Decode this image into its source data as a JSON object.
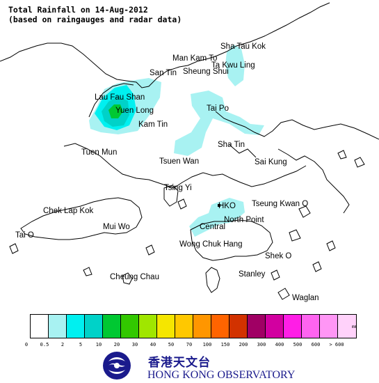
{
  "title": {
    "line1": "Total Rainfall on 14-Aug-2012",
    "line2": "(based on raingauges and radar data)"
  },
  "places": [
    {
      "key": "sha-tau-kok",
      "label": "Sha Tau Kok"
    },
    {
      "key": "man-kam-to",
      "label": "Man Kam To"
    },
    {
      "key": "ta-kwu-ling",
      "label": "Ta Kwu Ling"
    },
    {
      "key": "san-tin",
      "label": "San Tin"
    },
    {
      "key": "sheung-shui",
      "label": "Sheung Shui"
    },
    {
      "key": "lau-fau-shan",
      "label": "Lau Fau Shan"
    },
    {
      "key": "yuen-long",
      "label": "Yuen Long"
    },
    {
      "key": "tai-po",
      "label": "Tai Po"
    },
    {
      "key": "kam-tin",
      "label": "Kam Tin"
    },
    {
      "key": "tuen-mun",
      "label": "Tuen Mun"
    },
    {
      "key": "sha-tin",
      "label": "Sha Tin"
    },
    {
      "key": "tsuen-wan",
      "label": "Tsuen Wan"
    },
    {
      "key": "sai-kung",
      "label": "Sai Kung"
    },
    {
      "key": "tsing-yi",
      "label": "Tsing Yi"
    },
    {
      "key": "chek-lap-kok",
      "label": "Chek Lap Kok"
    },
    {
      "key": "hko",
      "label": "HKO"
    },
    {
      "key": "tseung-kwan-o",
      "label": "Tseung Kwan O"
    },
    {
      "key": "north-point",
      "label": "North Point"
    },
    {
      "key": "mui-wo",
      "label": "Mui Wo"
    },
    {
      "key": "central",
      "label": "Central"
    },
    {
      "key": "tai-o",
      "label": "Tai O"
    },
    {
      "key": "wong-chuk-hang",
      "label": "Wong Chuk Hang"
    },
    {
      "key": "shek-o",
      "label": "Shek O"
    },
    {
      "key": "cheung-chau",
      "label": "Cheung Chau"
    },
    {
      "key": "stanley",
      "label": "Stanley"
    },
    {
      "key": "waglan",
      "label": "Waglan"
    }
  ],
  "legend": {
    "unit": "mm",
    "ticks": [
      "0",
      "0.5",
      "2",
      "5",
      "10",
      "20",
      "30",
      "40",
      "50",
      "70",
      "100",
      "150",
      "200",
      "300",
      "400",
      "500",
      "600",
      "> 600"
    ],
    "colors": [
      "#ffffff",
      "#a8f2f2",
      "#00f0f0",
      "#00d2c8",
      "#00c832",
      "#32c800",
      "#a0e600",
      "#f5e600",
      "#ffc800",
      "#ff9600",
      "#ff6400",
      "#d23200",
      "#a00064",
      "#d200a0",
      "#ff1ee6",
      "#ff64f0",
      "#ff96f5",
      "#ffd2fa"
    ]
  },
  "rain_areas": [
    {
      "name": "north-west-main",
      "band": "0.5-2 mm",
      "color": "#a8f2f2"
    },
    {
      "name": "yuen-long-core",
      "band": "2-5 mm",
      "color": "#00f0f0"
    },
    {
      "name": "yuen-long-peak",
      "band": "5-10 mm",
      "color": "#00d2c8"
    },
    {
      "name": "yuen-long-max",
      "band": "10-20 mm",
      "color": "#00c832"
    },
    {
      "name": "tai-po-sha-tin",
      "band": "0.5-2 mm",
      "color": "#a8f2f2"
    },
    {
      "name": "sheung-shui",
      "band": "0.5-2 mm",
      "color": "#a8f2f2"
    },
    {
      "name": "kowloon-harbour",
      "band": "0.5-2 mm",
      "color": "#a8f2f2"
    }
  ],
  "logo": {
    "chinese": "香港天文台",
    "english": "HONG KONG OBSERVATORY",
    "colors": {
      "primary": "#1a1a8c"
    }
  }
}
